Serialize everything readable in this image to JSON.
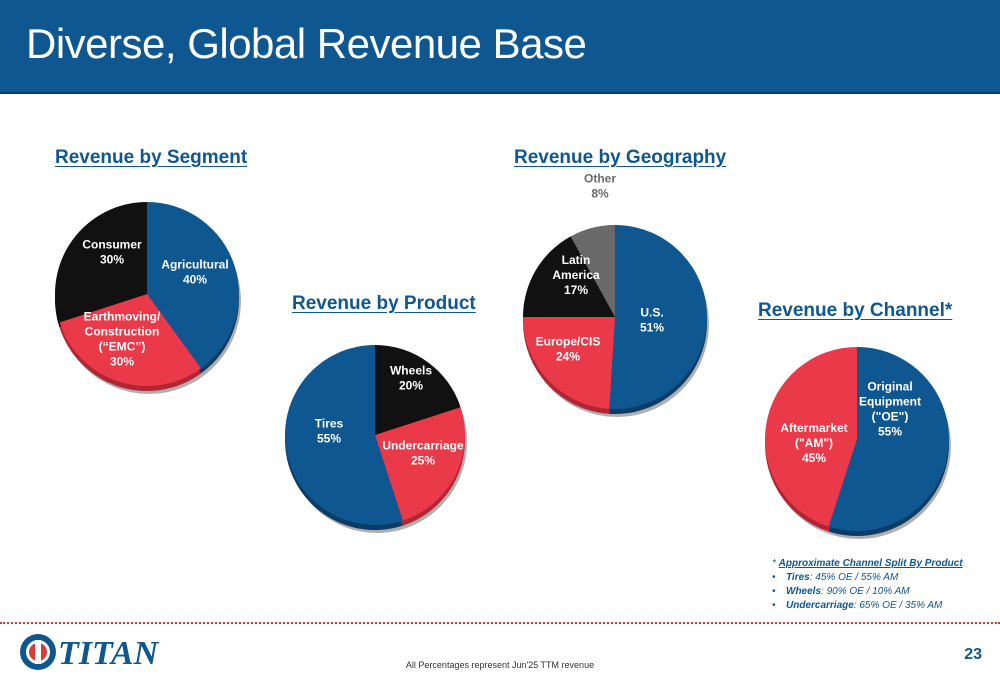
{
  "header": {
    "title": "Diverse, Global Revenue Base"
  },
  "colors": {
    "blue": "#0f5791",
    "red": "#ea3a4a",
    "black": "#111111",
    "gray": "#6a6a6a"
  },
  "chart_data": [
    {
      "type": "pie",
      "title": "Revenue by Segment",
      "slices": [
        {
          "label": "Agricultural",
          "lines": [
            "Agricultural",
            "40%"
          ],
          "value": 40,
          "color": "#0f5791"
        },
        {
          "label": "Earthmoving/ Construction (“EMC”)",
          "lines": [
            "Earthmoving/",
            "Construction",
            "(“EMC”)",
            "30%"
          ],
          "value": 30,
          "color": "#ea3a4a"
        },
        {
          "label": "Consumer",
          "lines": [
            "Consumer",
            "30%"
          ],
          "value": 30,
          "color": "#111111"
        }
      ]
    },
    {
      "type": "pie",
      "title": "Revenue by Product",
      "slices": [
        {
          "label": "Wheels",
          "lines": [
            "Wheels",
            "20%"
          ],
          "value": 20,
          "color": "#111111"
        },
        {
          "label": "Undercarriage",
          "lines": [
            "Undercarriage",
            "25%"
          ],
          "value": 25,
          "color": "#ea3a4a"
        },
        {
          "label": "Tires",
          "lines": [
            "Tires",
            "55%"
          ],
          "value": 55,
          "color": "#0f5791"
        }
      ]
    },
    {
      "type": "pie",
      "title": "Revenue by Geography",
      "slices": [
        {
          "label": "U.S.",
          "lines": [
            "U.S.",
            "51%"
          ],
          "value": 51,
          "color": "#0f5791"
        },
        {
          "label": "Europe/CIS",
          "lines": [
            "Europe/CIS",
            "24%"
          ],
          "value": 24,
          "color": "#ea3a4a"
        },
        {
          "label": "Latin America",
          "lines": [
            "Latin",
            "America",
            "17%"
          ],
          "value": 17,
          "color": "#111111"
        },
        {
          "label": "Other",
          "lines": [
            "Other",
            "8%"
          ],
          "value": 8,
          "color": "#6a6a6a"
        }
      ]
    },
    {
      "type": "pie",
      "title": "Revenue by Channel*",
      "slices": [
        {
          "label": "Original Equipment (\"OE\")",
          "lines": [
            "Original",
            "Equipment",
            "(\"OE\")",
            "55%"
          ],
          "value": 55,
          "color": "#0f5791"
        },
        {
          "label": "Aftermarket (\"AM\")",
          "lines": [
            "Aftermarket",
            "(\"AM\")",
            "45%"
          ],
          "value": 45,
          "color": "#ea3a4a"
        }
      ]
    }
  ],
  "footnote": {
    "star": "* ",
    "heading": "Approximate Channel Split By Product",
    "items": [
      {
        "name": "Tires",
        "text": ": 45% OE  / 55% AM"
      },
      {
        "name": "Wheels",
        "text": ": 90% OE / 10% AM"
      },
      {
        "name": "Undercarriage",
        "text": ": 65% OE / 35% AM"
      }
    ]
  },
  "logo": {
    "text": "TITAN"
  },
  "footer": {
    "note": "All Percentages represent Jun'25 TTM revenue",
    "page": "23"
  }
}
